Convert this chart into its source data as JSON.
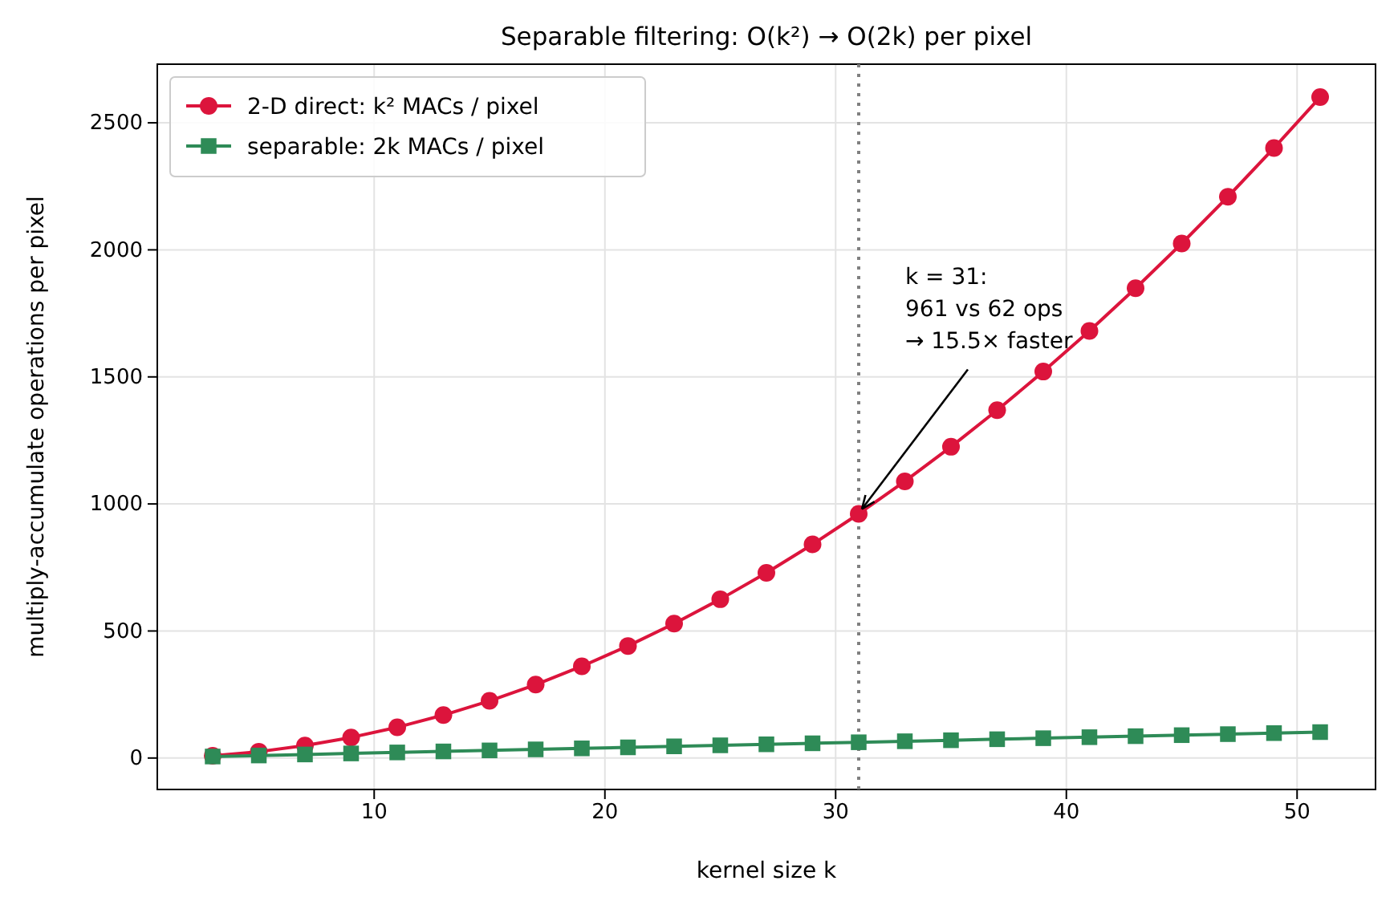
{
  "chart_data": {
    "type": "line",
    "title": "Separable filtering: O(k²) → O(2k) per pixel",
    "xlabel": "kernel size k",
    "ylabel": "multiply-accumulate operations per pixel",
    "x": [
      3,
      5,
      7,
      9,
      11,
      13,
      15,
      17,
      19,
      21,
      23,
      25,
      27,
      29,
      31,
      33,
      35,
      37,
      39,
      41,
      43,
      45,
      47,
      49,
      51
    ],
    "series": [
      {
        "name": "2-D direct: k² MACs / pixel",
        "color": "#dc143c",
        "marker": "circle",
        "values": [
          9,
          25,
          49,
          81,
          121,
          169,
          225,
          289,
          361,
          441,
          529,
          625,
          729,
          841,
          961,
          1089,
          1225,
          1369,
          1521,
          1681,
          1849,
          2025,
          2209,
          2401,
          2601
        ]
      },
      {
        "name": "separable: 2k MACs / pixel",
        "color": "#2e8b57",
        "marker": "square",
        "values": [
          6,
          10,
          14,
          18,
          22,
          26,
          30,
          34,
          38,
          42,
          46,
          50,
          54,
          58,
          62,
          66,
          70,
          74,
          78,
          82,
          86,
          90,
          94,
          98,
          102
        ]
      }
    ],
    "xlim": [
      0.6,
      53.4
    ],
    "ylim": [
      -123.75,
      2730.75
    ],
    "xticks": [
      10,
      20,
      30,
      40,
      50
    ],
    "yticks": [
      0,
      500,
      1000,
      1500,
      2000,
      2500
    ],
    "grid": true,
    "legend": "top left",
    "line_style": "solid",
    "ref_lines": [
      {
        "axis": "x",
        "value": 31,
        "color": "#808080",
        "line_style": "dotted"
      }
    ],
    "annotations": [
      {
        "text": "k = 31:\n961 vs 62 ops\n→ 15.5× faster",
        "x": 31,
        "y": 961
      }
    ]
  }
}
